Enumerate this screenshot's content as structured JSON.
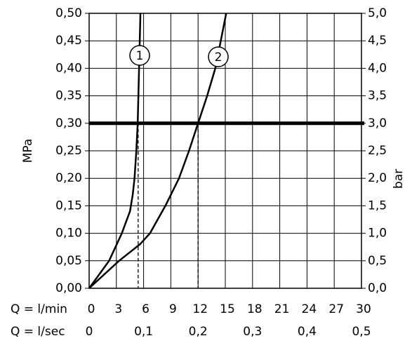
{
  "chart_data": {
    "type": "line",
    "y_label": "MPa",
    "y2_label": "bar",
    "x_label": "Q = l/min",
    "x2_label": "Q = l/sec",
    "xlim": [
      0,
      30
    ],
    "xticks": [
      0,
      3,
      6,
      9,
      12,
      15,
      18,
      21,
      24,
      27,
      30
    ],
    "x2lim": [
      0,
      0.5
    ],
    "x2ticks": [
      0,
      {
        "value": 0.1,
        "label": "0,1"
      },
      {
        "value": 0.2,
        "label": "0,2"
      },
      {
        "value": 0.3,
        "label": "0,3"
      },
      {
        "value": 0.4,
        "label": "0,4"
      },
      {
        "value": 0.5,
        "label": "0,5"
      }
    ],
    "ylim": [
      0,
      0.5
    ],
    "yticks": [
      {
        "value": 0,
        "label": "0,00"
      },
      {
        "value": 0.05,
        "label": "0,05"
      },
      {
        "value": 0.1,
        "label": "0,10"
      },
      {
        "value": 0.15,
        "label": "0,15"
      },
      {
        "value": 0.2,
        "label": "0,20"
      },
      {
        "value": 0.25,
        "label": "0,25"
      },
      {
        "value": 0.3,
        "label": "0,30"
      },
      {
        "value": 0.35,
        "label": "0,35"
      },
      {
        "value": 0.4,
        "label": "0,40"
      },
      {
        "value": 0.45,
        "label": "0,45"
      },
      {
        "value": 0.5,
        "label": "0,50"
      }
    ],
    "y2lim": [
      0,
      5
    ],
    "y2ticks": [
      {
        "value": 0,
        "label": "0,0"
      },
      {
        "value": 0.5,
        "label": "0,5"
      },
      {
        "value": 1,
        "label": "1,0"
      },
      {
        "value": 1.5,
        "label": "1,5"
      },
      {
        "value": 2,
        "label": "2,0"
      },
      {
        "value": 2.5,
        "label": "2,5"
      },
      {
        "value": 3,
        "label": "3,0"
      },
      {
        "value": 3.5,
        "label": "3,5"
      },
      {
        "value": 4,
        "label": "4,0"
      },
      {
        "value": 4.5,
        "label": "4,5"
      },
      {
        "value": 5,
        "label": "5,0"
      }
    ],
    "grid": true,
    "reference_line": 0.3,
    "drop_lines": [
      5.4,
      12
    ],
    "series": [
      {
        "name": "1",
        "color": "#000000",
        "x": [
          0,
          2.2,
          3.6,
          4.5,
          4.8,
          5.0,
          5.2,
          5.35,
          5.5,
          5.65
        ],
        "values": [
          0,
          0.05,
          0.1,
          0.14,
          0.17,
          0.2,
          0.25,
          0.3,
          0.4,
          0.5
        ]
      },
      {
        "name": "2",
        "color": "#000000",
        "x": [
          0,
          3.3,
          5.6,
          6.7,
          8.4,
          9.9,
          11.0,
          12.0,
          13.0,
          13.9,
          14.5,
          15.1
        ],
        "values": [
          0,
          0.05,
          0.08,
          0.1,
          0.15,
          0.2,
          0.25,
          0.3,
          0.35,
          0.4,
          0.45,
          0.5
        ]
      }
    ]
  }
}
